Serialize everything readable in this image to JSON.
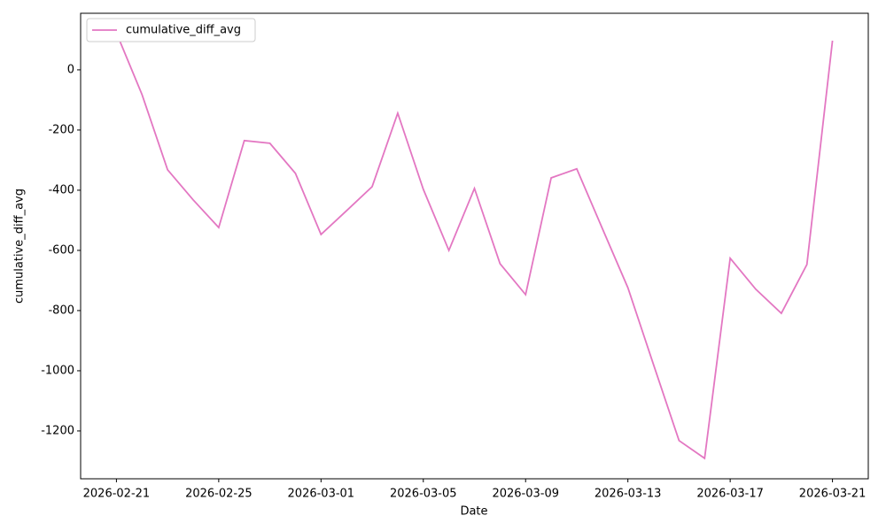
{
  "chart_data": {
    "type": "line",
    "xlabel": "Date",
    "ylabel": "cumulative_diff_avg",
    "x": [
      "2026-02-21",
      "2026-02-22",
      "2026-02-23",
      "2026-02-24",
      "2026-02-25",
      "2026-02-26",
      "2026-02-27",
      "2026-02-28",
      "2026-03-01",
      "2026-03-02",
      "2026-03-03",
      "2026-03-04",
      "2026-03-05",
      "2026-03-06",
      "2026-03-07",
      "2026-03-08",
      "2026-03-09",
      "2026-03-10",
      "2026-03-11",
      "2026-03-12",
      "2026-03-13",
      "2026-03-14",
      "2026-03-15",
      "2026-03-16",
      "2026-03-17",
      "2026-03-18",
      "2026-03-19",
      "2026-03-20",
      "2026-03-21"
    ],
    "series": [
      {
        "name": "cumulative_diff_avg",
        "color": "#e377c2",
        "values": [
          123,
          -82,
          -332,
          -432,
          -524,
          -235,
          -244,
          -344,
          -547,
          -468,
          -388,
          -144,
          -397,
          -600,
          -394,
          -644,
          -747,
          -359,
          -329,
          -527,
          -724,
          -979,
          -1232,
          -1291,
          -626,
          -729,
          -809,
          -647,
          97
        ]
      }
    ],
    "xlim": [
      "2026-02-19T14:24:00Z",
      "2026-03-22T09:36:00Z"
    ],
    "xticks": [
      "2026-02-21",
      "2026-02-25",
      "2026-03-01",
      "2026-03-05",
      "2026-03-09",
      "2026-03-13",
      "2026-03-17",
      "2026-03-21"
    ],
    "ylim": [
      -1359,
      188
    ],
    "yticks": [
      -1200,
      -1000,
      -800,
      -600,
      -400,
      -200,
      0
    ],
    "grid": false,
    "legend": "upper left"
  }
}
